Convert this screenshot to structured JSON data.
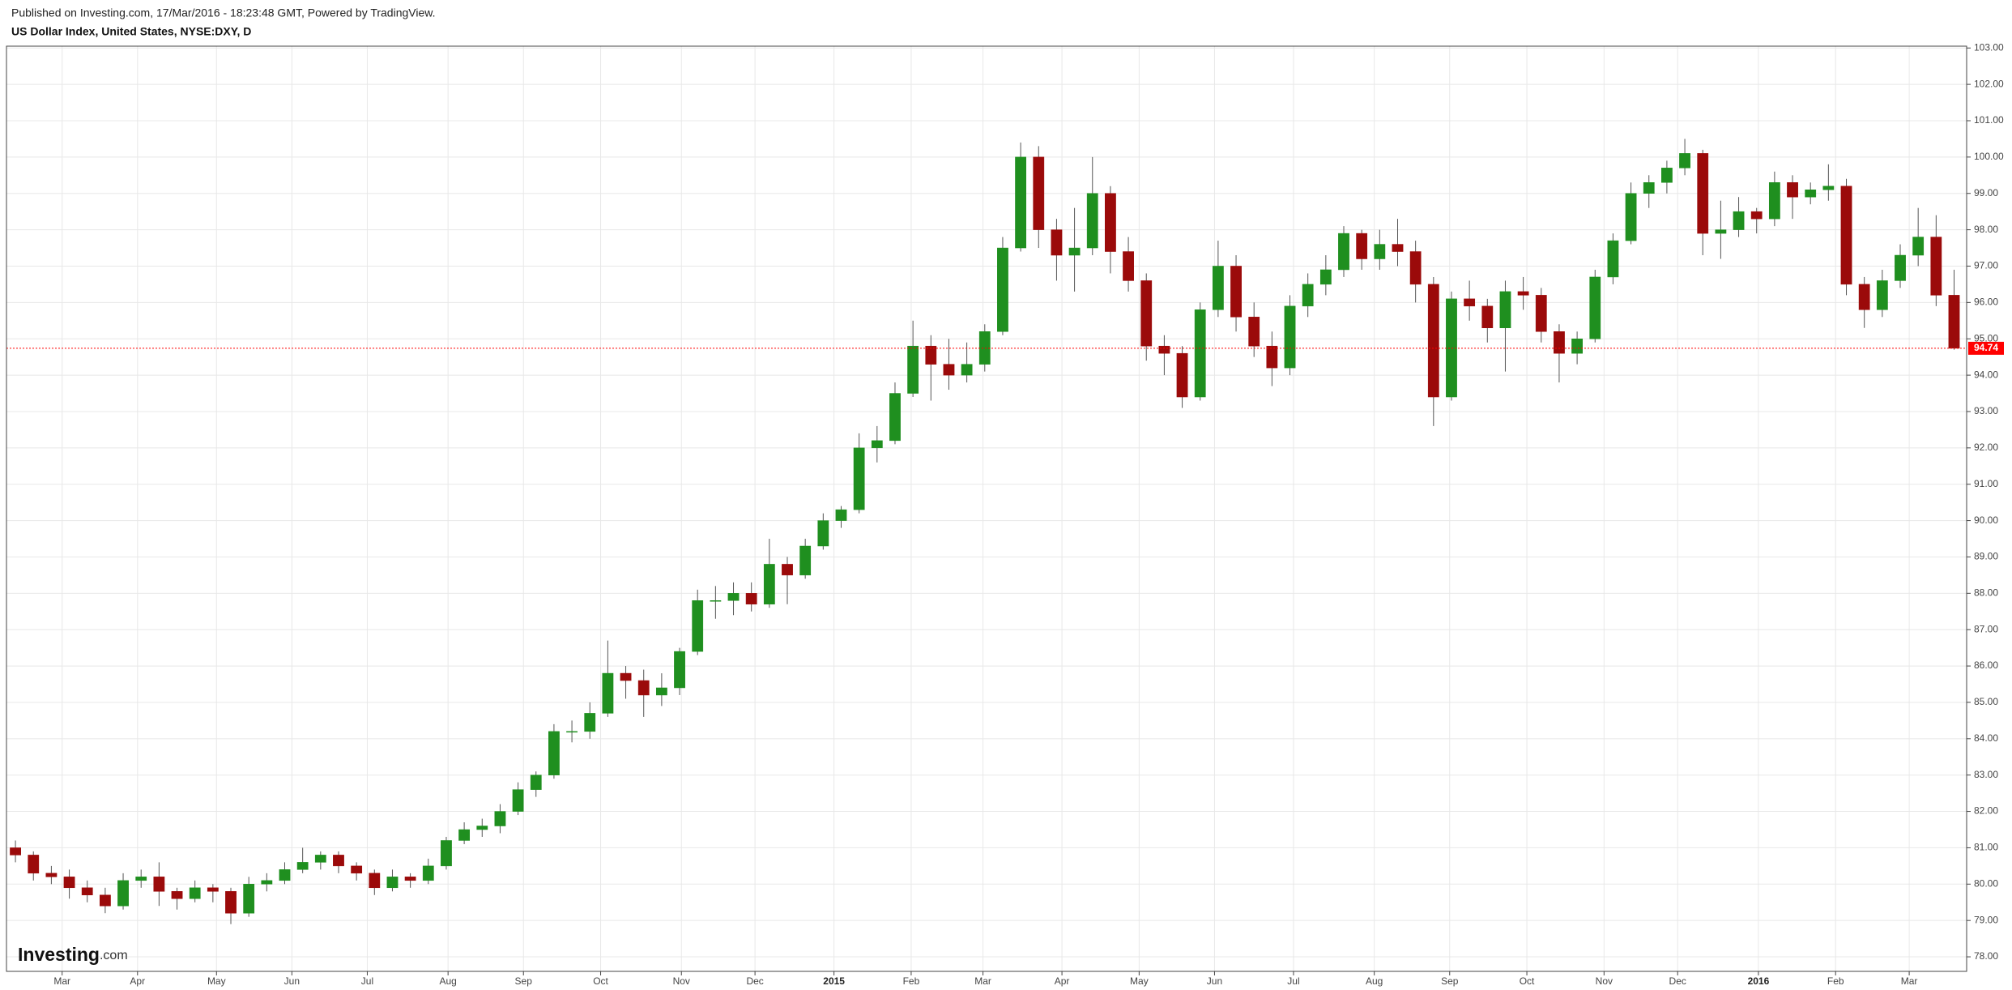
{
  "chart_data": {
    "type": "candlestick",
    "subtitle": "Published on Investing.com, 17/Mar/2016 - 18:23:48 GMT, Powered by TradingView.",
    "title": "US Dollar Index, United States, NYSE:DXY, D",
    "logo": [
      "Investing",
      ".com"
    ],
    "up_color": "#1f8f1f",
    "down_color": "#9b0a0a",
    "grid": true,
    "xlim": [
      -0.5,
      108.7
    ],
    "xticks": [
      {
        "value": 2.6,
        "label": "Mar"
      },
      {
        "value": 6.8,
        "label": "Apr"
      },
      {
        "value": 11.2,
        "label": "May"
      },
      {
        "value": 15.4,
        "label": "Jun"
      },
      {
        "value": 19.6,
        "label": "Jul"
      },
      {
        "value": 24.1,
        "label": "Aug"
      },
      {
        "value": 28.3,
        "label": "Sep"
      },
      {
        "value": 32.6,
        "label": "Oct"
      },
      {
        "value": 37.1,
        "label": "Nov"
      },
      {
        "value": 41.2,
        "label": "Dec"
      },
      {
        "value": 45.6,
        "label": "2015"
      },
      {
        "value": 49.9,
        "label": "Feb"
      },
      {
        "value": 53.9,
        "label": "Mar"
      },
      {
        "value": 58.3,
        "label": "Apr"
      },
      {
        "value": 62.6,
        "label": "May"
      },
      {
        "value": 66.8,
        "label": "Jun"
      },
      {
        "value": 71.2,
        "label": "Jul"
      },
      {
        "value": 75.7,
        "label": "Aug"
      },
      {
        "value": 79.9,
        "label": "Sep"
      },
      {
        "value": 84.2,
        "label": "Oct"
      },
      {
        "value": 88.5,
        "label": "Nov"
      },
      {
        "value": 92.6,
        "label": "Dec"
      },
      {
        "value": 97.1,
        "label": "2016"
      },
      {
        "value": 101.4,
        "label": "Feb"
      },
      {
        "value": 105.5,
        "label": "Mar"
      }
    ],
    "ylim": [
      77.6,
      103.05
    ],
    "yticks": [
      {
        "value": 78,
        "label": "78.00"
      },
      {
        "value": 79,
        "label": "79.00"
      },
      {
        "value": 80,
        "label": "80.00"
      },
      {
        "value": 81,
        "label": "81.00"
      },
      {
        "value": 82,
        "label": "82.00"
      },
      {
        "value": 83,
        "label": "83.00"
      },
      {
        "value": 84,
        "label": "84.00"
      },
      {
        "value": 85,
        "label": "85.00"
      },
      {
        "value": 86,
        "label": "86.00"
      },
      {
        "value": 87,
        "label": "87.00"
      },
      {
        "value": 88,
        "label": "88.00"
      },
      {
        "value": 89,
        "label": "89.00"
      },
      {
        "value": 90,
        "label": "90.00"
      },
      {
        "value": 91,
        "label": "91.00"
      },
      {
        "value": 92,
        "label": "92.00"
      },
      {
        "value": 93,
        "label": "93.00"
      },
      {
        "value": 94,
        "label": "94.00"
      },
      {
        "value": 95,
        "label": "95.00"
      },
      {
        "value": 96,
        "label": "96.00"
      },
      {
        "value": 97,
        "label": "97.00"
      },
      {
        "value": 98,
        "label": "98.00"
      },
      {
        "value": 99,
        "label": "99.00"
      },
      {
        "value": 100,
        "label": "100.00"
      },
      {
        "value": 101,
        "label": "101.00"
      },
      {
        "value": 102,
        "label": "102.00"
      },
      {
        "value": 103,
        "label": "103.00"
      }
    ],
    "last_price": 94.74,
    "last_price_color": "#ff0000",
    "candles": {
      "open": [
        81.0,
        80.8,
        80.3,
        80.2,
        79.9,
        79.7,
        79.4,
        80.1,
        80.2,
        79.8,
        79.6,
        79.9,
        79.8,
        79.2,
        80.0,
        80.1,
        80.4,
        80.6,
        80.8,
        80.5,
        80.3,
        79.9,
        80.2,
        80.1,
        80.5,
        81.2,
        81.5,
        81.6,
        82.0,
        82.6,
        83.0,
        84.2,
        84.2,
        84.7,
        85.8,
        85.6,
        85.2,
        85.4,
        86.4,
        87.8,
        87.8,
        88.0,
        87.7,
        88.8,
        88.5,
        89.3,
        90.0,
        90.3,
        92.0,
        92.2,
        93.5,
        94.8,
        94.3,
        94.0,
        94.3,
        95.2,
        97.5,
        100.0,
        98.0,
        97.3,
        97.5,
        99.0,
        97.4,
        96.6,
        94.8,
        94.6,
        93.4,
        95.8,
        97.0,
        95.6,
        94.8,
        94.2,
        95.9,
        96.5,
        96.9,
        97.9,
        97.2,
        97.6,
        97.4,
        96.5,
        93.4,
        96.1,
        95.9,
        95.3,
        96.3,
        96.2,
        95.2,
        94.6,
        95.0,
        96.7,
        97.7,
        99.0,
        99.3,
        99.7,
        100.1,
        97.9,
        98.0,
        98.5,
        98.3,
        99.3,
        98.9,
        99.1,
        99.2,
        96.5,
        95.8,
        96.6,
        97.3,
        97.8,
        96.2
      ],
      "high": [
        81.2,
        80.9,
        80.5,
        80.4,
        80.1,
        79.9,
        80.3,
        80.4,
        80.6,
        79.9,
        80.1,
        80.0,
        79.9,
        80.2,
        80.3,
        80.6,
        81.0,
        80.9,
        80.9,
        80.6,
        80.4,
        80.4,
        80.3,
        80.7,
        81.3,
        81.7,
        81.8,
        82.2,
        82.8,
        83.1,
        84.4,
        84.5,
        85.0,
        86.7,
        86.0,
        85.9,
        85.8,
        86.5,
        88.1,
        88.2,
        88.3,
        88.3,
        89.5,
        89.0,
        89.5,
        90.2,
        90.4,
        92.4,
        92.6,
        93.8,
        95.5,
        95.1,
        95.0,
        94.9,
        95.4,
        97.8,
        100.4,
        100.3,
        98.3,
        98.6,
        100.0,
        99.2,
        97.8,
        96.8,
        95.1,
        94.8,
        96.0,
        97.7,
        97.3,
        96.0,
        95.2,
        96.2,
        96.8,
        97.3,
        98.1,
        98.0,
        98.0,
        98.3,
        97.7,
        96.7,
        96.3,
        96.6,
        96.1,
        96.6,
        96.7,
        96.4,
        95.4,
        95.2,
        96.9,
        97.9,
        99.3,
        99.5,
        99.9,
        100.5,
        100.2,
        98.8,
        98.9,
        98.6,
        99.6,
        99.5,
        99.3,
        99.8,
        99.4,
        96.7,
        96.9,
        97.6,
        98.6,
        98.4,
        96.9
      ],
      "low": [
        80.6,
        80.1,
        80.0,
        79.6,
        79.5,
        79.2,
        79.3,
        79.9,
        79.4,
        79.3,
        79.5,
        79.5,
        78.9,
        79.1,
        79.8,
        80.0,
        80.3,
        80.4,
        80.3,
        80.1,
        79.7,
        79.8,
        79.9,
        80.0,
        80.4,
        81.1,
        81.3,
        81.4,
        81.9,
        82.4,
        82.9,
        83.9,
        84.0,
        84.6,
        85.1,
        84.6,
        84.9,
        85.2,
        86.3,
        87.3,
        87.4,
        87.5,
        87.6,
        87.7,
        88.4,
        89.2,
        89.8,
        90.2,
        91.6,
        92.1,
        93.4,
        93.3,
        93.6,
        93.8,
        94.1,
        95.1,
        97.4,
        97.5,
        96.6,
        96.3,
        97.3,
        96.8,
        96.3,
        94.4,
        94.0,
        93.1,
        93.3,
        95.6,
        95.2,
        94.5,
        93.7,
        94.0,
        95.6,
        96.2,
        96.7,
        96.9,
        96.9,
        97.0,
        96.0,
        92.6,
        93.3,
        95.5,
        94.9,
        94.1,
        95.8,
        94.9,
        93.8,
        94.3,
        94.9,
        96.5,
        97.6,
        98.6,
        99.0,
        99.5,
        97.3,
        97.2,
        97.8,
        97.9,
        98.1,
        98.3,
        98.7,
        98.8,
        96.2,
        95.3,
        95.6,
        96.4,
        97.0,
        95.9,
        94.7
      ],
      "close": [
        80.8,
        80.3,
        80.2,
        79.9,
        79.7,
        79.4,
        80.1,
        80.2,
        79.8,
        79.6,
        79.9,
        79.8,
        79.2,
        80.0,
        80.1,
        80.4,
        80.6,
        80.8,
        80.5,
        80.3,
        79.9,
        80.2,
        80.1,
        80.5,
        81.2,
        81.5,
        81.6,
        82.0,
        82.6,
        83.0,
        84.2,
        84.2,
        84.7,
        85.8,
        85.6,
        85.2,
        85.4,
        86.4,
        87.8,
        87.8,
        88.0,
        87.7,
        88.8,
        88.5,
        89.3,
        90.0,
        90.3,
        92.0,
        92.2,
        93.5,
        94.8,
        94.3,
        94.0,
        94.3,
        95.2,
        97.5,
        100.0,
        98.0,
        97.3,
        97.5,
        99.0,
        97.4,
        96.6,
        94.8,
        94.6,
        93.4,
        95.8,
        97.0,
        95.6,
        94.8,
        94.2,
        95.9,
        96.5,
        96.9,
        97.9,
        97.2,
        97.6,
        97.4,
        96.5,
        93.4,
        96.1,
        95.9,
        95.3,
        96.3,
        96.2,
        95.2,
        94.6,
        95.0,
        96.7,
        97.7,
        99.0,
        99.3,
        99.7,
        100.1,
        97.9,
        98.0,
        98.5,
        98.3,
        99.3,
        98.9,
        99.1,
        99.2,
        96.5,
        95.8,
        96.6,
        97.3,
        97.8,
        96.2,
        94.74
      ]
    }
  }
}
